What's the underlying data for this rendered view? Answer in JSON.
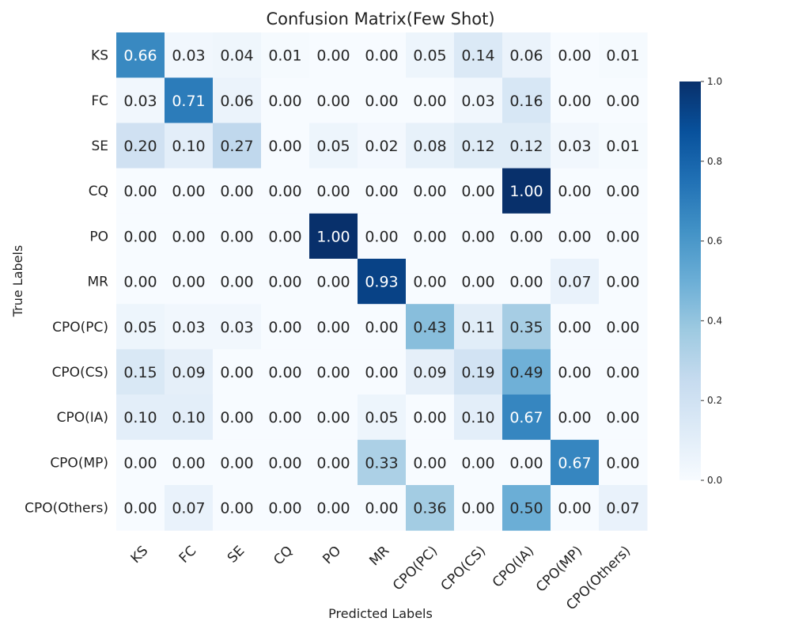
{
  "chart_data": {
    "type": "heatmap",
    "title": "Confusion Matrix(Few Shot)",
    "xlabel": "Predicted Labels",
    "ylabel": "True Labels",
    "x_categories": [
      "KS",
      "FC",
      "SE",
      "CQ",
      "PO",
      "MR",
      "CPO(PC)",
      "CPO(CS)",
      "CPO(IA)",
      "CPO(MP)",
      "CPO(Others)"
    ],
    "y_categories": [
      "KS",
      "FC",
      "SE",
      "CQ",
      "PO",
      "MR",
      "CPO(PC)",
      "CPO(CS)",
      "CPO(IA)",
      "CPO(MP)",
      "CPO(Others)"
    ],
    "values": [
      [
        0.66,
        0.03,
        0.04,
        0.01,
        0.0,
        0.0,
        0.05,
        0.14,
        0.06,
        0.0,
        0.01
      ],
      [
        0.03,
        0.71,
        0.06,
        0.0,
        0.0,
        0.0,
        0.0,
        0.03,
        0.16,
        0.0,
        0.0
      ],
      [
        0.2,
        0.1,
        0.27,
        0.0,
        0.05,
        0.02,
        0.08,
        0.12,
        0.12,
        0.03,
        0.01
      ],
      [
        0.0,
        0.0,
        0.0,
        0.0,
        0.0,
        0.0,
        0.0,
        0.0,
        1.0,
        0.0,
        0.0
      ],
      [
        0.0,
        0.0,
        0.0,
        0.0,
        1.0,
        0.0,
        0.0,
        0.0,
        0.0,
        0.0,
        0.0
      ],
      [
        0.0,
        0.0,
        0.0,
        0.0,
        0.0,
        0.93,
        0.0,
        0.0,
        0.0,
        0.07,
        0.0
      ],
      [
        0.05,
        0.03,
        0.03,
        0.0,
        0.0,
        0.0,
        0.43,
        0.11,
        0.35,
        0.0,
        0.0
      ],
      [
        0.15,
        0.09,
        0.0,
        0.0,
        0.0,
        0.0,
        0.09,
        0.19,
        0.49,
        0.0,
        0.0
      ],
      [
        0.1,
        0.1,
        0.0,
        0.0,
        0.0,
        0.05,
        0.0,
        0.1,
        0.67,
        0.0,
        0.0
      ],
      [
        0.0,
        0.0,
        0.0,
        0.0,
        0.0,
        0.33,
        0.0,
        0.0,
        0.0,
        0.67,
        0.0
      ],
      [
        0.0,
        0.07,
        0.0,
        0.0,
        0.0,
        0.0,
        0.36,
        0.0,
        0.5,
        0.0,
        0.07
      ]
    ],
    "value_range": [
      0,
      1
    ],
    "colormap": "Blues",
    "colorbar": {
      "ticks": [
        "0.0",
        "0.2",
        "0.4",
        "0.6",
        "0.8",
        "1.0"
      ],
      "placement": "right"
    },
    "grid": false
  }
}
